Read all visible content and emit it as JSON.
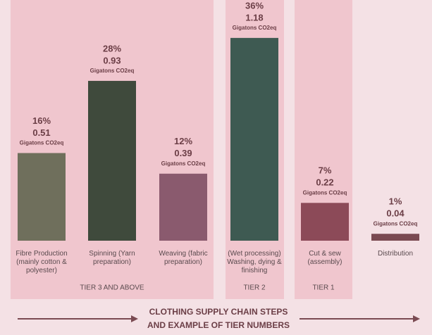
{
  "chart_data": {
    "type": "bar",
    "categories": [
      "Fibre Production (mainly cotton & polyester)",
      "Spinning (Yarn preparation)",
      "Weaving (fabric preparation)",
      "(Wet processing) Washing, dying & finishing",
      "Cut & sew (assembly)",
      "Distribution"
    ],
    "values": [
      0.51,
      0.93,
      0.39,
      1.18,
      0.22,
      0.04
    ],
    "percent": [
      16,
      28,
      12,
      36,
      7,
      1
    ],
    "percent_labels": [
      "16%",
      "28%",
      "12%",
      "36%",
      "7%",
      "1%"
    ],
    "unit_label": "Gigatons CO2eq",
    "colors": [
      "#6f6f5c",
      "#3f4a3c",
      "#8a5a6e",
      "#3e5a52",
      "#8c4a58",
      "#7a4a52"
    ],
    "ylim": [
      0,
      1.2
    ],
    "tiers": [
      "TIER 3 AND ABOVE",
      "TIER 2",
      "TIER 1"
    ],
    "xlabel": [
      "CLOTHING SUPPLY CHAIN STEPS",
      "AND EXAMPLE OF TIER NUMBERS"
    ]
  }
}
